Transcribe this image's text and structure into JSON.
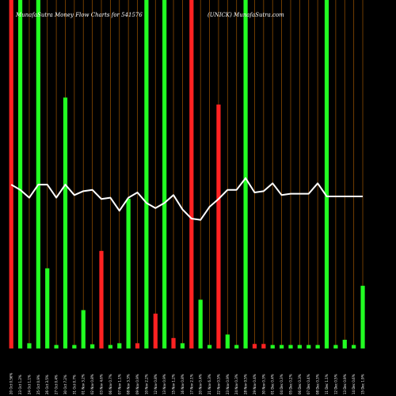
{
  "chart_data": {
    "type": "bar",
    "title_left": "MunafaSutra  Money Flow  Charts for 541576",
    "title_right": "(UNICK) MunafaSutra.com",
    "xlabel": "",
    "ylabel": "",
    "grid": "vertical",
    "legend": "none",
    "colors": {
      "background": "#000000",
      "up": "#22ff22",
      "down": "#ff2222",
      "grid": "#8a4a00",
      "line": "#ffffff",
      "text": "#ffffff"
    },
    "categories": [
      "Fri 20 Oct",
      "Mon 23 Oct",
      "Tue 24 Oct",
      "Wed 25 Oct",
      "Thu 26 Oct",
      "Fri 27 Oct",
      "Mon 30 Oct",
      "Tue 31 Oct",
      "Wed 01 Nov",
      "Thu 02 Nov",
      "Fri 03 Nov",
      "Mon 06 Nov",
      "Tue 07 Nov",
      "Wed 08 Nov",
      "Thu 09 Nov",
      "Fri 10 Nov",
      "Sun 12 Nov",
      "Mon 13 Nov",
      "Wed 15 Nov",
      "Thu 16 Nov",
      "Fri 17 Nov",
      "Mon 20 Nov",
      "Tue 21 Nov",
      "Wed 22 Nov",
      "Thu 23 Nov",
      "Fri 24 Nov",
      "Tue 28 Nov",
      "Wed 29 Nov",
      "Thu 30 Nov",
      "Fri 01 Dec",
      "Mon 04 Dec",
      "Tue 05 Dec",
      "Wed 06 Dec",
      "Thu 07 Dec",
      "Fri 08 Dec",
      "Mon 11 Dec",
      "Tue 12 Dec",
      "Wed 13 Dec",
      "Thu 14 Dec",
      "Fri 15 Dec"
    ],
    "x_tick_labels": [
      "20 Oct 0.56%",
      "23 Oct 1.2%",
      "24 Oct 1.1%",
      "25 Oct 0.9%",
      "26 Oct 3.5%",
      "27 Oct 0.4%",
      "30 Oct 7.2%",
      "31 Oct 0.7%",
      "01 Nov 3.2%",
      "02 Nov 0.8%",
      "03 Nov 4.6%",
      "06 Nov 0.7%",
      "07 Nov 1.1%",
      "08 Nov 3.3%",
      "09 Nov 0.9%",
      "10 Nov 2.2%",
      "12 Nov 0.8%",
      "13 Nov 0.9%",
      "15 Nov 1.2%",
      "16 Nov 0.8%",
      "17 Nov 2.1%",
      "20 Nov 0.4%",
      "21 Nov 6.3%",
      "22 Nov 0.5%",
      "23 Nov 0.9%",
      "24 Nov 0.3%",
      "28 Nov 0.5%",
      "29 Nov 0.4%",
      "30 Nov 0.3%",
      "01 Dec 0.4%",
      "04 Dec 0.3%",
      "05 Dec 0.2%",
      "06 Dec 0.3%",
      "07 Dec 0.4%",
      "08 Dec 0.3%",
      "11 Dec 1.1%",
      "12 Dec 0.5%",
      "13 Dec 0.9%",
      "14 Dec 0.6%",
      "15 Dec 1.9%"
    ],
    "series": [
      {
        "values": [
          100,
          100,
          1.5,
          100,
          23,
          1,
          72,
          1,
          11,
          1.2,
          28,
          1,
          1.5,
          43,
          1.5,
          100,
          10,
          100,
          3,
          1.5,
          100,
          14,
          1,
          70,
          4,
          1,
          100,
          1.3,
          1.3,
          1,
          1,
          1,
          1,
          1,
          1,
          100,
          1,
          2.5,
          1,
          18
        ],
        "direction": [
          "down",
          "up",
          "up",
          "up",
          "up",
          "up",
          "up",
          "up",
          "up",
          "up",
          "down",
          "up",
          "up",
          "up",
          "down",
          "up",
          "down",
          "up",
          "down",
          "up",
          "down",
          "up",
          "up",
          "down",
          "up",
          "up",
          "up",
          "down",
          "down",
          "up",
          "up",
          "up",
          "up",
          "up",
          "up",
          "up",
          "up",
          "up",
          "up",
          "up"
        ]
      },
      {
        "values": [
          63,
          61,
          58,
          63,
          63,
          58,
          63,
          59,
          60.5,
          61,
          57.5,
          58,
          53,
          58,
          60,
          56,
          54,
          56,
          59,
          53.5,
          50,
          49.5,
          54.5,
          57.5,
          61,
          61,
          65.5,
          60,
          60.5,
          63.5,
          59,
          59.5,
          59.5,
          59.5,
          63.5,
          58.5,
          58.5,
          58.5,
          58.5,
          58.5
        ],
        "style": "line"
      }
    ],
    "ylim": [
      0,
      100
    ]
  }
}
